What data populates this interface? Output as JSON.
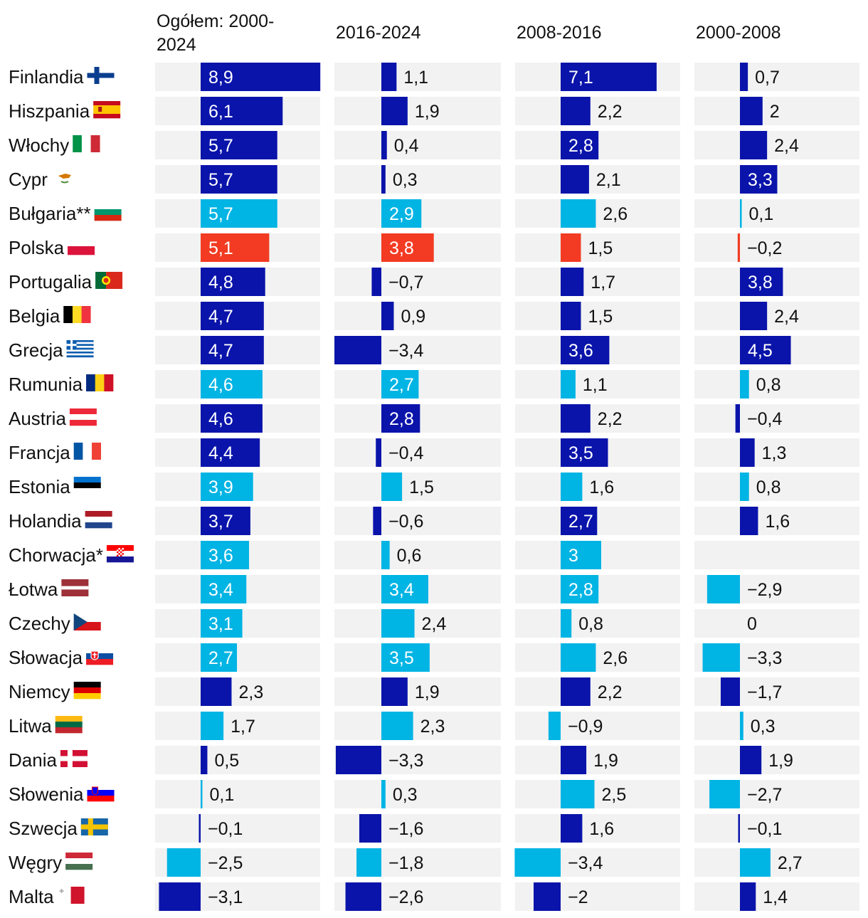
{
  "chart_data": {
    "type": "bar",
    "orientation": "horizontal",
    "colors": {
      "dark": "#0a14aa",
      "light": "#00b4e4",
      "highlight": "#f23b22",
      "track": "#f2f2f2",
      "text": "#111111"
    },
    "columns": [
      {
        "title": [
          "Ogółem: 2000-",
          "2024"
        ],
        "key": "total"
      },
      {
        "title": [
          "2016-2024"
        ],
        "key": "p2016_2024"
      },
      {
        "title": [
          "2008-2016"
        ],
        "key": "p2008_2016"
      },
      {
        "title": [
          "2000-2008"
        ],
        "key": "p2000_2008"
      }
    ],
    "categories": [
      "Finlandia",
      "Hiszpania",
      "Włochy",
      "Cypr",
      "Bułgaria**",
      "Polska",
      "Portugalia",
      "Belgia",
      "Grecja",
      "Rumunia",
      "Austria",
      "Francja",
      "Estonia",
      "Holandia",
      "Chorwacja*",
      "Łotwa",
      "Czechy",
      "Słowacja",
      "Niemcy",
      "Litwa",
      "Dania",
      "Słowenia",
      "Szwecja",
      "Węgry",
      "Malta"
    ],
    "flags": [
      "fi",
      "es",
      "it",
      "cy",
      "bg",
      "pl",
      "pt",
      "be",
      "gr",
      "ro",
      "at",
      "fr",
      "ee",
      "nl",
      "hr",
      "lv",
      "cz",
      "sk",
      "de",
      "lt",
      "dk",
      "si",
      "se",
      "hu",
      "mt"
    ],
    "row_color_group": [
      "dark",
      "dark",
      "dark",
      "dark",
      "light",
      "highlight",
      "dark",
      "dark",
      "dark",
      "light",
      "dark",
      "dark",
      "light",
      "dark",
      "light",
      "light",
      "light",
      "light",
      "dark",
      "light",
      "dark",
      "light",
      "dark",
      "light",
      "dark"
    ],
    "series": [
      {
        "key": "total",
        "values": [
          "8,9",
          "6,1",
          "5,7",
          "5,7",
          "5,7",
          "5,1",
          "4,8",
          "4,7",
          "4,7",
          "4,6",
          "4,6",
          "4,4",
          "3,9",
          "3,7",
          "3,6",
          "3,4",
          "3,1",
          "2,7",
          "2,3",
          "1,7",
          "0,5",
          "0,1",
          "−0,1",
          "−2,5",
          "−3,1"
        ]
      },
      {
        "key": "p2016_2024",
        "values": [
          "1,1",
          "1,9",
          "0,4",
          "0,3",
          "2,9",
          "3,8",
          "−0,7",
          "0,9",
          "−3,4",
          "2,7",
          "2,8",
          "−0,4",
          "1,5",
          "−0,6",
          "0,6",
          "3,4",
          "2,4",
          "3,5",
          "1,9",
          "2,3",
          "−3,3",
          "0,3",
          "−1,6",
          "−1,8",
          "−2,6"
        ]
      },
      {
        "key": "p2008_2016",
        "values": [
          "7,1",
          "2,2",
          "2,8",
          "2,1",
          "2,6",
          "1,5",
          "1,7",
          "1,5",
          "3,6",
          "1,1",
          "2,2",
          "3,5",
          "1,6",
          "2,7",
          "3",
          "2,8",
          "0,8",
          "2,6",
          "2,2",
          "−0,9",
          "1,9",
          "2,5",
          "1,6",
          "−3,4",
          "−2"
        ]
      },
      {
        "key": "p2000_2008",
        "values": [
          "0,7",
          "2",
          "2,4",
          "3,3",
          "0,1",
          "−0,2",
          "3,8",
          "2,4",
          "4,5",
          "0,8",
          "−0,4",
          "1,3",
          "0,8",
          "1,6",
          "",
          "−2,9",
          "0",
          "−3,3",
          "−1,7",
          "0,3",
          "1,9",
          "−2,7",
          "−0,1",
          "2,7",
          "1,4"
        ]
      }
    ]
  }
}
